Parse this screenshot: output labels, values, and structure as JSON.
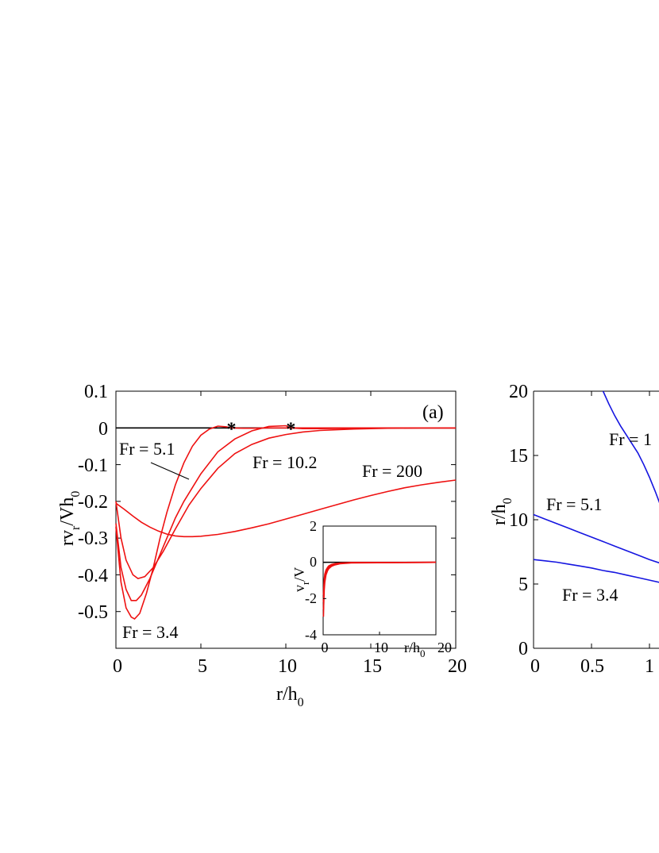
{
  "chart_data": [
    {
      "type": "line",
      "panel_label": "(a)",
      "xlabel": {
        "main": "r/h",
        "sub": "0"
      },
      "ylabel": {
        "main": "rv",
        "sub1": "r",
        "mid": "/Vh",
        "sub2": "0"
      },
      "xlim": [
        0,
        20
      ],
      "ylim": [
        -0.6,
        0.1
      ],
      "xticks": [
        "0",
        "5",
        "10",
        "15",
        "20"
      ],
      "yticks": [
        "0.1",
        "0",
        "-0.1",
        "-0.2",
        "-0.3",
        "-0.4",
        "-0.5"
      ],
      "zero_line": true,
      "series": [
        {
          "name": "Fr = 3.4",
          "x": [
            0,
            0.3,
            0.6,
            0.9,
            1.1,
            1.4,
            1.8,
            2.2,
            2.6,
            3,
            3.5,
            4,
            4.5,
            5,
            5.5,
            6,
            6.5,
            6.8,
            7.5,
            8,
            9,
            10,
            12,
            15,
            20
          ],
          "y": [
            -0.27,
            -0.42,
            -0.49,
            -0.515,
            -0.52,
            -0.505,
            -0.45,
            -0.38,
            -0.3,
            -0.23,
            -0.155,
            -0.095,
            -0.05,
            -0.02,
            -0.003,
            0.005,
            0.003,
            0,
            -0.001,
            -0.001,
            0,
            0,
            0,
            0,
            0
          ]
        },
        {
          "name": "Fr = 5.1",
          "x": [
            0,
            0.3,
            0.6,
            0.9,
            1.2,
            1.5,
            2,
            2.5,
            3,
            3.5,
            4,
            5,
            6,
            7,
            8,
            9,
            10,
            10.3,
            11,
            12,
            14,
            17,
            20
          ],
          "y": [
            -0.26,
            -0.38,
            -0.44,
            -0.47,
            -0.47,
            -0.455,
            -0.41,
            -0.355,
            -0.3,
            -0.245,
            -0.2,
            -0.125,
            -0.065,
            -0.03,
            -0.008,
            0.004,
            0.006,
            0,
            -0.002,
            -0.002,
            -0.001,
            0,
            0
          ]
        },
        {
          "name": "Fr = 10.2",
          "x": [
            0,
            0.3,
            0.6,
            1,
            1.3,
            1.7,
            2.2,
            2.8,
            3.5,
            4.3,
            5,
            6,
            7,
            8,
            9,
            10,
            11,
            12,
            14,
            16,
            18,
            20
          ],
          "y": [
            -0.2,
            -0.3,
            -0.36,
            -0.4,
            -0.41,
            -0.405,
            -0.38,
            -0.335,
            -0.275,
            -0.21,
            -0.165,
            -0.11,
            -0.07,
            -0.045,
            -0.028,
            -0.018,
            -0.011,
            -0.007,
            -0.003,
            -0.001,
            0,
            0
          ]
        },
        {
          "name": "Fr = 200",
          "x": [
            0,
            0.5,
            1,
            1.5,
            2,
            2.5,
            3,
            3.5,
            4,
            4.5,
            5,
            6,
            7,
            8,
            9,
            10,
            11,
            12,
            13,
            14,
            15,
            16,
            17,
            18,
            19,
            20
          ],
          "y": [
            -0.205,
            -0.222,
            -0.24,
            -0.257,
            -0.27,
            -0.281,
            -0.289,
            -0.294,
            -0.296,
            -0.296,
            -0.295,
            -0.29,
            -0.282,
            -0.272,
            -0.261,
            -0.248,
            -0.235,
            -0.222,
            -0.209,
            -0.196,
            -0.184,
            -0.173,
            -0.163,
            -0.155,
            -0.148,
            -0.142
          ]
        }
      ],
      "markers": [
        {
          "symbol": "*",
          "x": 6.8,
          "y": 0
        },
        {
          "symbol": "*",
          "x": 10.3,
          "y": 0
        }
      ],
      "annotations": [
        "Fr = 5.1",
        "Fr = 10.2",
        "Fr = 200",
        "Fr = 3.4"
      ],
      "inset": {
        "xlabel": {
          "main": "r/h",
          "sub": "0"
        },
        "ylabel": {
          "main": "v",
          "sub": "r",
          "rest": "/V"
        },
        "xlim": [
          0,
          20
        ],
        "ylim": [
          -4,
          2
        ],
        "xticks": [
          "0",
          "10",
          "20"
        ],
        "yticks": [
          "2",
          "0",
          "-2",
          "-4"
        ],
        "series": [
          {
            "x": [
              0.05,
              0.1,
              0.2,
              0.3,
              0.5,
              0.8,
              1,
              1.5,
              2,
              3,
              5,
              20
            ],
            "y": [
              -3,
              -2.4,
              -1.5,
              -1.1,
              -0.7,
              -0.45,
              -0.35,
              -0.22,
              -0.15,
              -0.08,
              -0.03,
              0
            ]
          },
          {
            "x": [
              0.05,
              0.1,
              0.2,
              0.3,
              0.5,
              0.8,
              1,
              1.5,
              2,
              3,
              5,
              20
            ],
            "y": [
              -2.6,
              -2,
              -1.3,
              -0.95,
              -0.6,
              -0.38,
              -0.3,
              -0.18,
              -0.12,
              -0.06,
              -0.02,
              0
            ]
          },
          {
            "x": [
              0.05,
              0.1,
              0.2,
              0.3,
              0.5,
              0.8,
              1,
              1.5,
              2,
              3,
              5,
              20
            ],
            "y": [
              -2.2,
              -1.7,
              -1.1,
              -0.8,
              -0.5,
              -0.32,
              -0.25,
              -0.15,
              -0.1,
              -0.05,
              -0.015,
              0
            ]
          },
          {
            "x": [
              0.05,
              0.1,
              0.2,
              0.3,
              0.5,
              0.8,
              1,
              1.5,
              2,
              3,
              5,
              20
            ],
            "y": [
              -1.8,
              -1.4,
              -0.9,
              -0.65,
              -0.42,
              -0.27,
              -0.2,
              -0.12,
              -0.08,
              -0.04,
              -0.01,
              0
            ]
          }
        ]
      }
    },
    {
      "type": "line",
      "ylabel": {
        "main": "r/h",
        "sub": "0"
      },
      "xlim": [
        0,
        1.5
      ],
      "ylim": [
        0,
        20
      ],
      "xticks": [
        "0",
        "0.5",
        "1"
      ],
      "yticks": [
        "20",
        "15",
        "10",
        "5",
        "0"
      ],
      "series": [
        {
          "name": "Fr = 3.4",
          "x": [
            0,
            0.1,
            0.2,
            0.3,
            0.4,
            0.5,
            0.6,
            0.7,
            0.8,
            0.9,
            1,
            1.1,
            1.15
          ],
          "y": [
            6.9,
            6.8,
            6.7,
            6.55,
            6.4,
            6.25,
            6.05,
            5.9,
            5.7,
            5.5,
            5.3,
            5.1,
            5.0
          ]
        },
        {
          "name": "Fr = 5.1",
          "x": [
            0,
            0.1,
            0.2,
            0.3,
            0.4,
            0.5,
            0.6,
            0.7,
            0.8,
            0.9,
            1,
            1.1,
            1.15
          ],
          "y": [
            10.4,
            10.05,
            9.7,
            9.35,
            9.0,
            8.65,
            8.3,
            7.95,
            7.6,
            7.25,
            6.9,
            6.6,
            6.4
          ]
        },
        {
          "name": "Fr = 1",
          "x": [
            0.6,
            0.65,
            0.7,
            0.75,
            0.8,
            0.85,
            0.9,
            0.95,
            1,
            1.05,
            1.1,
            1.15
          ],
          "y": [
            20,
            19,
            18.1,
            17.3,
            16.6,
            15.9,
            15.2,
            14.3,
            13.3,
            12.2,
            11.0,
            10.0
          ]
        }
      ],
      "annotations": [
        "Fr = 1",
        "Fr = 5.1",
        "Fr = 3.4"
      ]
    }
  ]
}
